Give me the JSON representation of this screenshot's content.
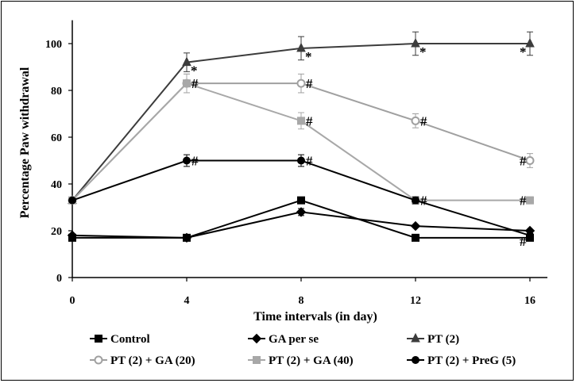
{
  "chart_data": {
    "type": "line",
    "title": "",
    "xlabel": "Time intervals (in day)",
    "ylabel": "Percentage Paw withdrawal",
    "x": [
      0,
      4,
      8,
      12,
      16
    ],
    "x_ticks": [
      "0",
      "4",
      "8",
      "12",
      "16"
    ],
    "y_ticks": [
      "0",
      "20",
      "40",
      "60",
      "80",
      "100"
    ],
    "xlim": [
      0,
      16
    ],
    "ylim": [
      0,
      110
    ],
    "grid": false,
    "legend_position": "bottom",
    "series": [
      {
        "name": "Control",
        "values": [
          17,
          17,
          33,
          17,
          17
        ],
        "errors": [
          0,
          0,
          1,
          0,
          0
        ],
        "marker": "square",
        "color": "#000000",
        "fill": "#000000"
      },
      {
        "name": "GA per se",
        "values": [
          18,
          17,
          28,
          22,
          20
        ],
        "errors": [
          0,
          0,
          1.5,
          0,
          0
        ],
        "marker": "diamond",
        "color": "#000000",
        "fill": "#000000"
      },
      {
        "name": "PT (2)",
        "values": [
          33,
          92,
          98,
          100,
          100
        ],
        "errors": [
          0,
          4,
          5,
          5,
          5
        ],
        "marker": "triangle",
        "color": "#3c3c3c",
        "fill": "#3c3c3c"
      },
      {
        "name": "PT (2) + GA (20)",
        "values": [
          33,
          83,
          83,
          67,
          50
        ],
        "errors": [
          0,
          4,
          4,
          3,
          3
        ],
        "marker": "circle-open",
        "color": "#a0a0a0",
        "fill": "#ffffff"
      },
      {
        "name": "PT (2) + GA (40)",
        "values": [
          33,
          83,
          67,
          33,
          33
        ],
        "errors": [
          0,
          4,
          3.5,
          1.5,
          1.5
        ],
        "marker": "square",
        "color": "#a8a8a8",
        "fill": "#a8a8a8"
      },
      {
        "name": "PT (2) + PreG (5)",
        "values": [
          33,
          50,
          50,
          33,
          18
        ],
        "errors": [
          0,
          2.5,
          2.5,
          1.5,
          0
        ],
        "marker": "circle",
        "color": "#000000",
        "fill": "#000000"
      }
    ],
    "annotations": [
      {
        "text": "*",
        "x": 4,
        "y": 92
      },
      {
        "text": "*",
        "x": 8,
        "y": 98
      },
      {
        "text": "*",
        "x": 12,
        "y": 100
      },
      {
        "text": "*",
        "x": 16,
        "y": 100
      },
      {
        "text": "#",
        "x": 4,
        "y": 83
      },
      {
        "text": "#",
        "x": 8,
        "y": 83
      },
      {
        "text": "#",
        "x": 8,
        "y": 67
      },
      {
        "text": "#",
        "x": 12,
        "y": 67
      },
      {
        "text": "#",
        "x": 16,
        "y": 50
      },
      {
        "text": "#",
        "x": 4,
        "y": 50
      },
      {
        "text": "#",
        "x": 8,
        "y": 50
      },
      {
        "text": "#",
        "x": 12,
        "y": 33
      },
      {
        "text": "#",
        "x": 16,
        "y": 33
      },
      {
        "text": "#",
        "x": 16,
        "y": 18
      }
    ]
  }
}
